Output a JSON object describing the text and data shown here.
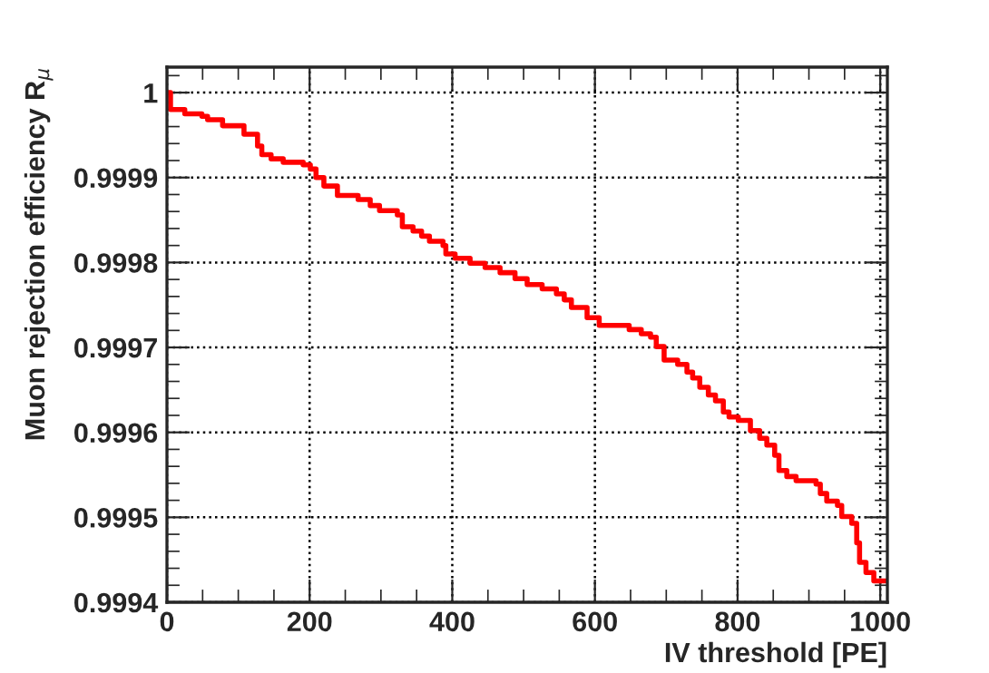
{
  "chart_data": {
    "type": "step",
    "xlabel": "IV threshold [PE]",
    "ylabel": "Muon rejection efficiency R$_{μ}$",
    "x": [
      0,
      5,
      25,
      49,
      57,
      78,
      108,
      127,
      133,
      146,
      163,
      191,
      201,
      209,
      220,
      239,
      268,
      285,
      298,
      323,
      330,
      345,
      357,
      368,
      387,
      391,
      404,
      425,
      446,
      467,
      488,
      505,
      526,
      546,
      557,
      567,
      589,
      606,
      648,
      665,
      678,
      686,
      697,
      716,
      729,
      737,
      747,
      759,
      769,
      780,
      788,
      801,
      818,
      831,
      841,
      852,
      858,
      869,
      882,
      910,
      916,
      925,
      940,
      946,
      960,
      967,
      971,
      980,
      991,
      1010
    ],
    "values": [
      1.0,
      0.99998,
      0.999975,
      0.999972,
      0.999968,
      0.999961,
      0.999951,
      0.999937,
      0.999927,
      0.999922,
      0.999918,
      0.999915,
      0.99991,
      0.9999,
      0.99989,
      0.999879,
      0.999874,
      0.999867,
      0.999861,
      0.999856,
      0.999842,
      0.999837,
      0.999831,
      0.999825,
      0.99982,
      0.99981,
      0.999805,
      0.999799,
      0.999794,
      0.999788,
      0.999781,
      0.999774,
      0.999769,
      0.999763,
      0.999756,
      0.999747,
      0.999735,
      0.999726,
      0.999721,
      0.999716,
      0.999712,
      0.999701,
      0.999685,
      0.99968,
      0.999671,
      0.999664,
      0.999653,
      0.999644,
      0.999637,
      0.999624,
      0.999618,
      0.999614,
      0.999602,
      0.999593,
      0.999585,
      0.999573,
      0.999555,
      0.999548,
      0.999543,
      0.999539,
      0.999528,
      0.999519,
      0.999514,
      0.999501,
      0.999493,
      0.99947,
      0.999447,
      0.999435,
      0.999425,
      0.999425
    ],
    "color": "#ff0000",
    "xlim": [
      0,
      1010
    ],
    "xticks": [
      0,
      200,
      400,
      600,
      800,
      1000
    ],
    "ylim": [
      0.9994,
      1.00003
    ],
    "yticks": [
      0.9994,
      0.9995,
      0.9996,
      0.9997,
      0.9998,
      0.9999,
      1
    ],
    "grid": true,
    "line_style": "solid",
    "legend": false
  }
}
